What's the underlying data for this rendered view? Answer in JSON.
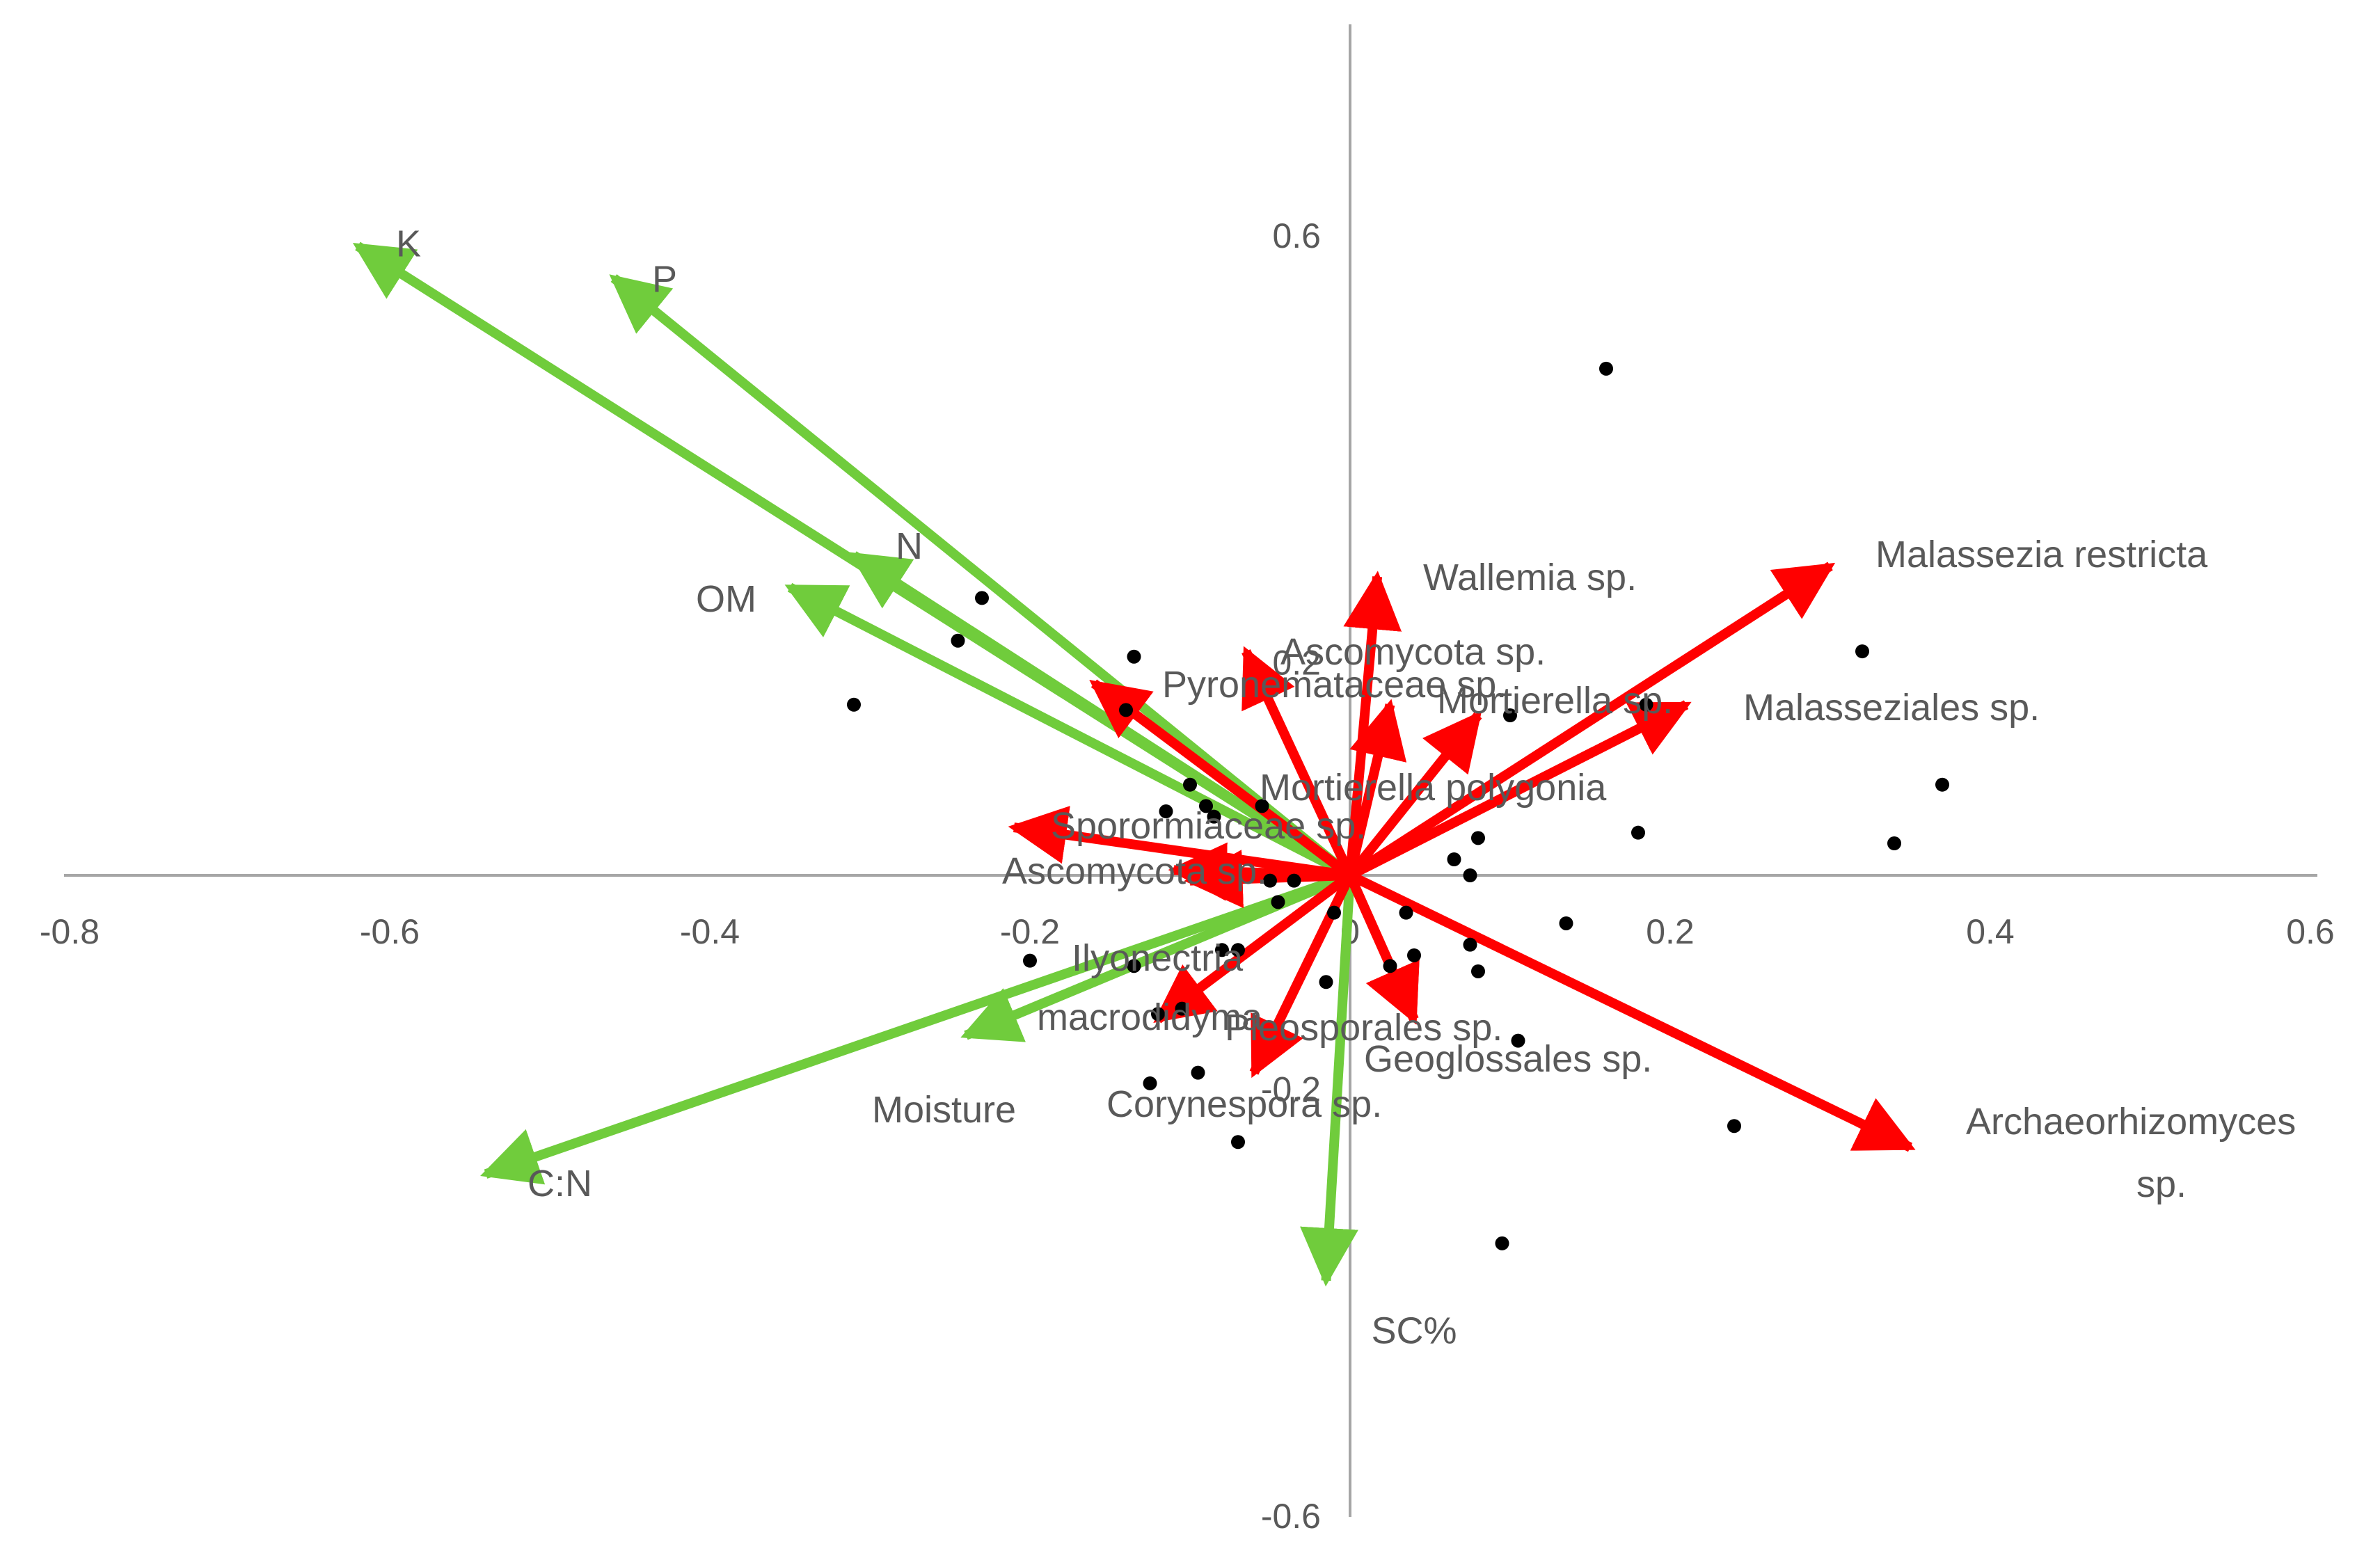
{
  "chart_data": {
    "type": "scatter",
    "subtype": "ordination-biplot",
    "title": "",
    "xlabel": "",
    "ylabel": "",
    "xlim": [
      -0.8,
      0.6
    ],
    "ylim": [
      -0.6,
      0.6
    ],
    "x_ticks": [
      "-0.8",
      "-0.6",
      "-0.4",
      "-0.2",
      "0",
      "0.2",
      "0.4",
      "0.6"
    ],
    "y_ticks": [
      "0.6",
      "0.2",
      "-0.2",
      "-0.6"
    ],
    "grid": false,
    "legend": "none",
    "colors": {
      "axis": "#a6a6a6",
      "environment_vectors": "#70cc3c",
      "species_vectors": "#ff0000",
      "points": "#000000",
      "text": "#595959"
    },
    "environment_vectors": [
      {
        "label": "K",
        "x": -0.62,
        "y": 0.59
      },
      {
        "label": "P",
        "x": -0.46,
        "y": 0.56
      },
      {
        "label": "N",
        "x": -0.31,
        "y": 0.3
      },
      {
        "label": "OM",
        "x": -0.35,
        "y": 0.27
      },
      {
        "label": "Moisture",
        "x": -0.24,
        "y": -0.15
      },
      {
        "label": "C:N",
        "x": -0.54,
        "y": -0.28
      },
      {
        "label": "SC%",
        "x": -0.015,
        "y": -0.38
      }
    ],
    "species_vectors": [
      {
        "label": "Malassezia restricta",
        "x": 0.3,
        "y": 0.29
      },
      {
        "label": "Wallemia sp.",
        "x": 0.017,
        "y": 0.28
      },
      {
        "label": "Ascomycota sp.",
        "x": -0.065,
        "y": 0.21
      },
      {
        "label": "Pyronemataceae sp.",
        "x": -0.16,
        "y": 0.18
      },
      {
        "label": "Mortierella sp.",
        "x": 0.21,
        "y": 0.16
      },
      {
        "label": "Malasseziales sp.",
        "x": 0.21,
        "y": 0.16
      },
      {
        "label": "Mortierella polygonia",
        "x": 0.08,
        "y": 0.15
      },
      {
        "label": "Sporormiaceae sp.",
        "x": 0.025,
        "y": 0.16
      },
      {
        "label": "Sporormiaceae sp.",
        "x": -0.21,
        "y": 0.045
      },
      {
        "label": "Ascomycota sp.",
        "x": -0.11,
        "y": 0.005
      },
      {
        "label": "Ascomycota sp.",
        "x": -0.1,
        "y": -0.005
      },
      {
        "label": "Ilyonectria macrodidyma",
        "x": -0.12,
        "y": -0.135
      },
      {
        "label": "Pleosporales sp.",
        "x": 0.04,
        "y": -0.135
      },
      {
        "label": "Corynespora sp.",
        "x": -0.06,
        "y": -0.185
      },
      {
        "label": "Geoglossales sp.",
        "x": 0.04,
        "y": -0.135
      },
      {
        "label": "Archaeorhizomyces sp.",
        "x": 0.35,
        "y": -0.255
      }
    ],
    "points": [
      {
        "x": 0.16,
        "y": 0.475
      },
      {
        "x": 0.32,
        "y": 0.21
      },
      {
        "x": 0.37,
        "y": 0.085
      },
      {
        "x": 0.34,
        "y": 0.03
      },
      {
        "x": 0.18,
        "y": 0.04
      },
      {
        "x": 0.185,
        "y": 0.16
      },
      {
        "x": 0.1,
        "y": 0.15
      },
      {
        "x": 0.08,
        "y": 0.035
      },
      {
        "x": 0.065,
        "y": 0.015
      },
      {
        "x": 0.075,
        "y": 0.0
      },
      {
        "x": -0.23,
        "y": 0.26
      },
      {
        "x": -0.245,
        "y": 0.22
      },
      {
        "x": -0.31,
        "y": 0.16
      },
      {
        "x": -0.135,
        "y": 0.205
      },
      {
        "x": -0.14,
        "y": 0.155
      },
      {
        "x": -0.1,
        "y": 0.085
      },
      {
        "x": -0.115,
        "y": 0.06
      },
      {
        "x": -0.09,
        "y": 0.065
      },
      {
        "x": -0.085,
        "y": 0.055
      },
      {
        "x": -0.055,
        "y": 0.065
      },
      {
        "x": -0.05,
        "y": -0.005
      },
      {
        "x": -0.035,
        "y": -0.005
      },
      {
        "x": -0.045,
        "y": -0.025
      },
      {
        "x": -0.01,
        "y": -0.035
      },
      {
        "x": 0.035,
        "y": -0.035
      },
      {
        "x": 0.135,
        "y": -0.045
      },
      {
        "x": 0.075,
        "y": -0.065
      },
      {
        "x": 0.08,
        "y": -0.09
      },
      {
        "x": 0.04,
        "y": -0.075
      },
      {
        "x": 0.025,
        "y": -0.085
      },
      {
        "x": -0.08,
        "y": -0.07
      },
      {
        "x": -0.07,
        "y": -0.07
      },
      {
        "x": -0.135,
        "y": -0.085
      },
      {
        "x": -0.2,
        "y": -0.08
      },
      {
        "x": -0.015,
        "y": -0.1
      },
      {
        "x": -0.105,
        "y": -0.125
      },
      {
        "x": -0.12,
        "y": -0.13
      },
      {
        "x": -0.125,
        "y": -0.195
      },
      {
        "x": -0.095,
        "y": -0.185
      },
      {
        "x": -0.07,
        "y": -0.25
      },
      {
        "x": 0.105,
        "y": -0.155
      },
      {
        "x": 0.24,
        "y": -0.235
      },
      {
        "x": 0.095,
        "y": -0.345
      }
    ]
  }
}
